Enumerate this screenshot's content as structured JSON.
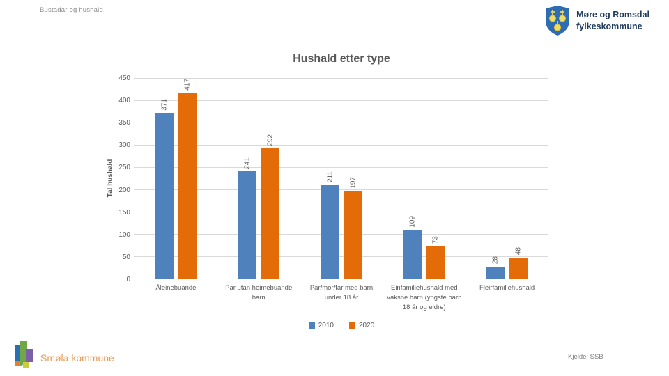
{
  "page": {
    "header": "Bustadar og hushald",
    "footer_left": "Smøla kommune",
    "footer_right": "Kjelde: SSB"
  },
  "logo": {
    "line1": "Møre og Romsdal",
    "line2": "fylkeskommune",
    "shield_blue": "#2e6db4",
    "shield_gold": "#ead664"
  },
  "colors": {
    "title_text": "#595959",
    "axis_text": "#595959",
    "gridline": "#d9d9d9",
    "header_text": "#8a8a8a",
    "footer_left_text": "#e89a53"
  },
  "chart_data": {
    "type": "bar",
    "title": "Hushald etter type",
    "xlabel": "",
    "ylabel": "Tal hushald",
    "ylim": [
      0,
      450
    ],
    "ytick_step": 50,
    "grid": true,
    "legend_position": "bottom",
    "data_labels_rotated": true,
    "categories": [
      "Åleinebuande",
      "Par utan heimebuande barn",
      "Par/mor/far med barn under 18 år",
      "Einfamiliehushald med vaksne barn (yngste barn 18 år og eldre)",
      "Fleirfamiliehushald"
    ],
    "series": [
      {
        "name": "2010",
        "color": "#4f81bd",
        "values": [
          371,
          241,
          211,
          109,
          28
        ]
      },
      {
        "name": "2020",
        "color": "#e36c09",
        "values": [
          417,
          292,
          197,
          73,
          48
        ]
      }
    ]
  }
}
